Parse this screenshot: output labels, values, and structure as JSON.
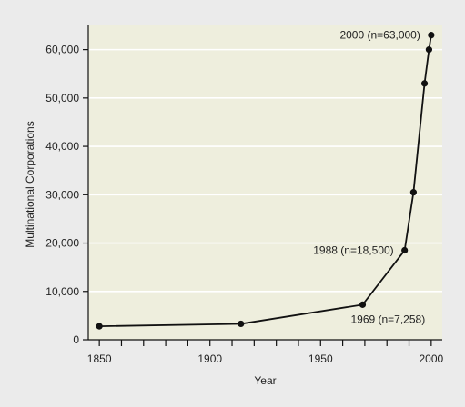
{
  "chart_data": {
    "type": "line",
    "xlabel": "Year",
    "ylabel": "Multinational Corporations",
    "xlim": [
      1845,
      2005
    ],
    "ylim": [
      0,
      65000
    ],
    "xticks": [
      1850,
      1900,
      1950,
      2000
    ],
    "yticks": [
      0,
      10000,
      20000,
      30000,
      40000,
      50000,
      60000
    ],
    "ytick_labels": [
      "0",
      "10,000",
      "20,000",
      "30,000",
      "40,000",
      "50,000",
      "60,000"
    ],
    "grid": "horizontal",
    "series": [
      {
        "x": [
          1850,
          1914,
          1969,
          1988,
          1992,
          1997,
          1999,
          2000
        ],
        "y": [
          2800,
          3300,
          7258,
          18500,
          30500,
          53000,
          60000,
          63000
        ]
      }
    ],
    "annotations": [
      {
        "text": "2000 (n=63,000)",
        "x": 2000,
        "y": 63000
      },
      {
        "text": "1988 (n=18,500)",
        "x": 1988,
        "y": 18500
      },
      {
        "text": "1969 (n=7,258)",
        "x": 1969,
        "y": 7258
      }
    ],
    "colors": {
      "plot_background": "#eeeedd",
      "frame_background": "#ebebeb",
      "line": "#111111",
      "grid": "#ffffff"
    }
  }
}
